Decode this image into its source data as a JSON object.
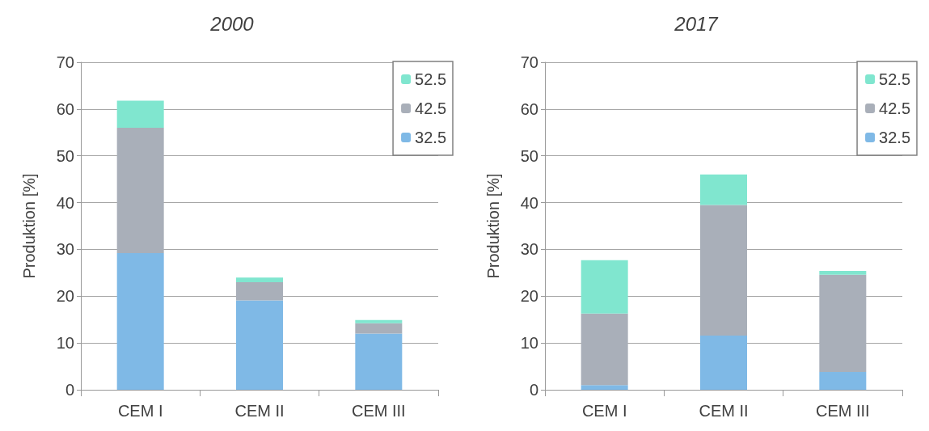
{
  "chart_data": [
    {
      "type": "bar",
      "title": "2000",
      "ylabel": "Produktion [%]",
      "categories": [
        "CEM I",
        "CEM II",
        "CEM III"
      ],
      "stacked": true,
      "ylim": [
        0,
        70
      ],
      "yticks": [
        0,
        10,
        20,
        30,
        40,
        50,
        60,
        70
      ],
      "grid": "y",
      "legend": "top right",
      "series": [
        {
          "name": "32.5",
          "color": "#7fb9e6",
          "values": [
            29.2,
            19.1,
            12.0
          ]
        },
        {
          "name": "42.5",
          "color": "#a9afb9",
          "values": [
            26.8,
            3.9,
            2.2
          ]
        },
        {
          "name": "52.5",
          "color": "#80e6cf",
          "values": [
            5.8,
            1.0,
            0.7
          ]
        }
      ]
    },
    {
      "type": "bar",
      "title": "2017",
      "ylabel": "Produktion [%]",
      "categories": [
        "CEM I",
        "CEM II",
        "CEM III"
      ],
      "stacked": true,
      "ylim": [
        0,
        70
      ],
      "yticks": [
        0,
        10,
        20,
        30,
        40,
        50,
        60,
        70
      ],
      "grid": "y",
      "legend": "top right",
      "series": [
        {
          "name": "32.5",
          "color": "#7fb9e6",
          "values": [
            1.0,
            11.6,
            3.8
          ]
        },
        {
          "name": "42.5",
          "color": "#a9afb9",
          "values": [
            15.3,
            27.9,
            20.8
          ]
        },
        {
          "name": "52.5",
          "color": "#80e6cf",
          "values": [
            11.4,
            6.5,
            0.8
          ]
        }
      ]
    }
  ]
}
